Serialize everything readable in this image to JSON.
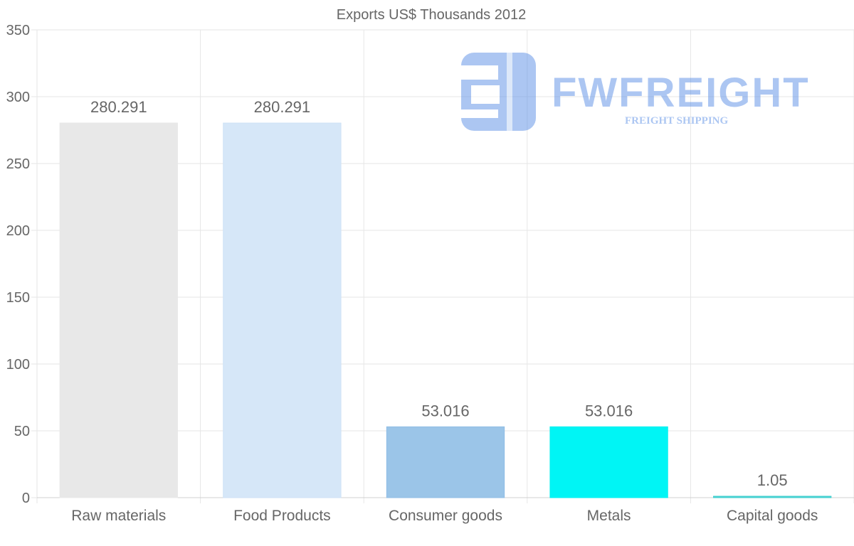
{
  "chart_data": {
    "type": "bar",
    "title": "Exports US$ Thousands 2012",
    "categories": [
      "Raw materials",
      "Food Products",
      "Consumer goods",
      "Metals",
      "Capital goods"
    ],
    "values": [
      280.291,
      280.291,
      53.016,
      53.016,
      1.05
    ],
    "value_labels": [
      "280.291",
      "280.291",
      "53.016",
      "53.016",
      "1.05"
    ],
    "bar_colors": [
      "#e8e8e8",
      "#d6e7f8",
      "#9bc5e8",
      "#00f5f5",
      "#4fd6d6"
    ],
    "bar_border_colors": [
      "#e8e8e8",
      "#cfe2f6",
      "#8fbde6",
      "#00eeee",
      "#3ccccc"
    ],
    "ylim": [
      0,
      350
    ],
    "yticks": [
      0,
      50,
      100,
      150,
      200,
      250,
      300,
      350
    ],
    "xlabel": "",
    "ylabel": "",
    "grid": true,
    "legend": "none"
  },
  "watermark": {
    "brand": "FWFREIGHT",
    "tagline": "FREIGHT SHIPPING",
    "color": "#5b8fe6"
  },
  "colors": {
    "grid": "#e6e6e6",
    "text": "#666666"
  }
}
